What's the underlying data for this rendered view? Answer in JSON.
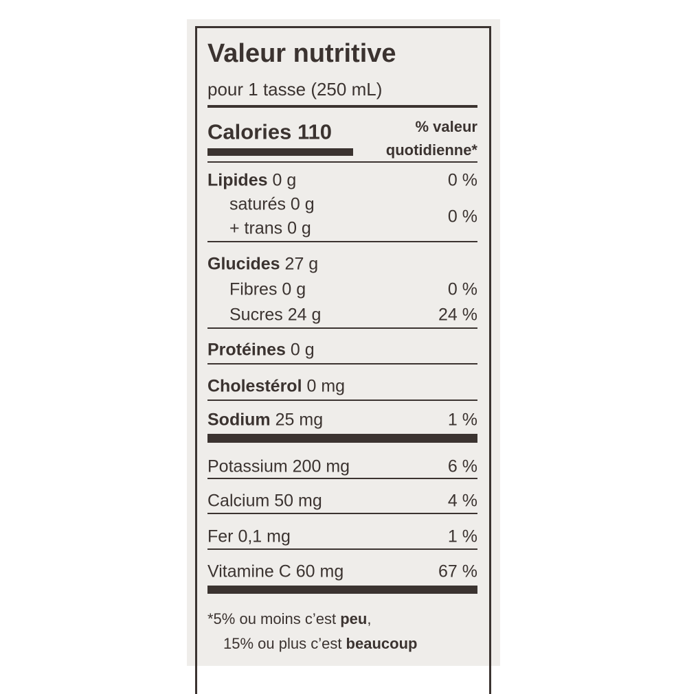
{
  "title": "Valeur nutritive",
  "serving": "pour 1 tasse (250 mL)",
  "calories": {
    "label": "Calories",
    "value": "110"
  },
  "dv_header": [
    "% valeur",
    "quotidienne*"
  ],
  "rows": [
    {
      "name": "Lipides",
      "amount": "0 g",
      "dv": "0 %"
    },
    {
      "sub": [
        "saturés 0 g",
        "+ trans 0 g"
      ],
      "dv": "0 %"
    },
    {
      "name": "Glucides",
      "amount": "27 g"
    },
    {
      "sub": [
        "Fibres 0 g"
      ],
      "dv": "0 %"
    },
    {
      "sub": [
        "Sucres 24 g"
      ],
      "dv": "24 %"
    },
    {
      "name": "Protéines",
      "amount": "0 g"
    },
    {
      "name": "Cholestérol",
      "amount": "0 mg"
    },
    {
      "name": "Sodium",
      "amount": "25 mg",
      "dv": "1 %"
    },
    {
      "plain": "Potassium 200 mg",
      "dv": "6 %"
    },
    {
      "plain": "Calcium 50 mg",
      "dv": "4 %"
    },
    {
      "plain": "Fer 0,1 mg",
      "dv": "1 %"
    },
    {
      "plain": "Vitamine C 60 mg",
      "dv": "67 %"
    }
  ],
  "footnote": [
    [
      "*5% ou moins c’est ",
      "peu",
      ","
    ],
    [
      "15% ou plus c’est ",
      "beaucoup"
    ]
  ]
}
